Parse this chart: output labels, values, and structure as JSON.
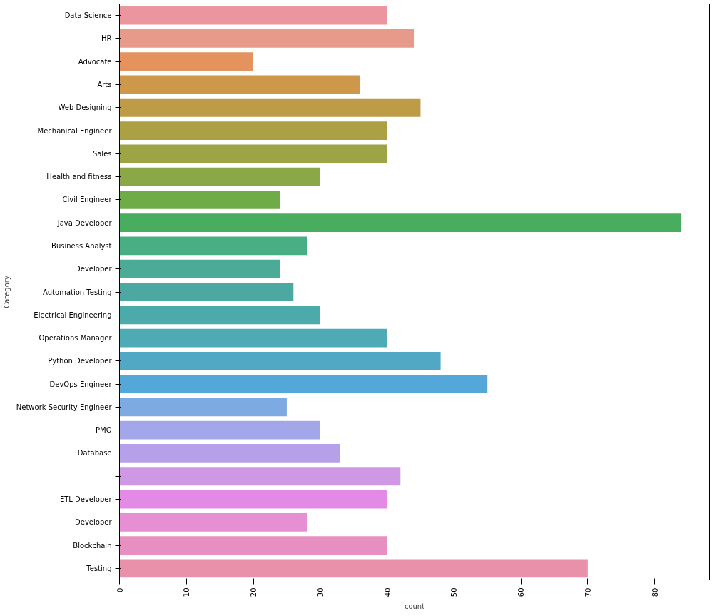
{
  "chart_data": {
    "type": "bar",
    "orientation": "horizontal",
    "xlabel": "count",
    "ylabel": "Category",
    "categories": [
      "Data Science",
      "HR",
      "Advocate",
      "Arts",
      "Web Designing",
      "Mechanical Engineer",
      "Sales",
      "Health and fitness",
      "Civil Engineer",
      "Java Developer",
      "Business Analyst",
      "Developer",
      "Automation Testing",
      "Electrical Engineering",
      "Operations Manager",
      "Python Developer",
      "DevOps Engineer",
      "Network Security Engineer",
      "PMO",
      "Database",
      null,
      "ETL Developer",
      "Developer",
      "Blockchain",
      "Testing"
    ],
    "values": [
      40,
      44,
      20,
      36,
      45,
      40,
      40,
      30,
      24,
      84,
      28,
      24,
      26,
      30,
      40,
      48,
      55,
      25,
      30,
      33,
      42,
      40,
      28,
      40,
      70
    ],
    "colors": [
      "#eb969f",
      "#e89a8a",
      "#e4935e",
      "#cd984a",
      "#bd9b47",
      "#aca045",
      "#9ca445",
      "#8aa846",
      "#6fab46",
      "#49ad5f",
      "#4aae84",
      "#4bab96",
      "#4ca9a2",
      "#4daaab",
      "#4eaab5",
      "#50a8c4",
      "#54a7d9",
      "#7eaae2",
      "#a3a6e8",
      "#b6a0e9",
      "#ce98e5",
      "#e28ae6",
      "#e690d3",
      "#e78fc1",
      "#e991ab"
    ],
    "xlim": [
      0,
      88.2
    ],
    "xticks": [
      0,
      10,
      20,
      30,
      40,
      50,
      60,
      70,
      80
    ],
    "grid": false
  }
}
